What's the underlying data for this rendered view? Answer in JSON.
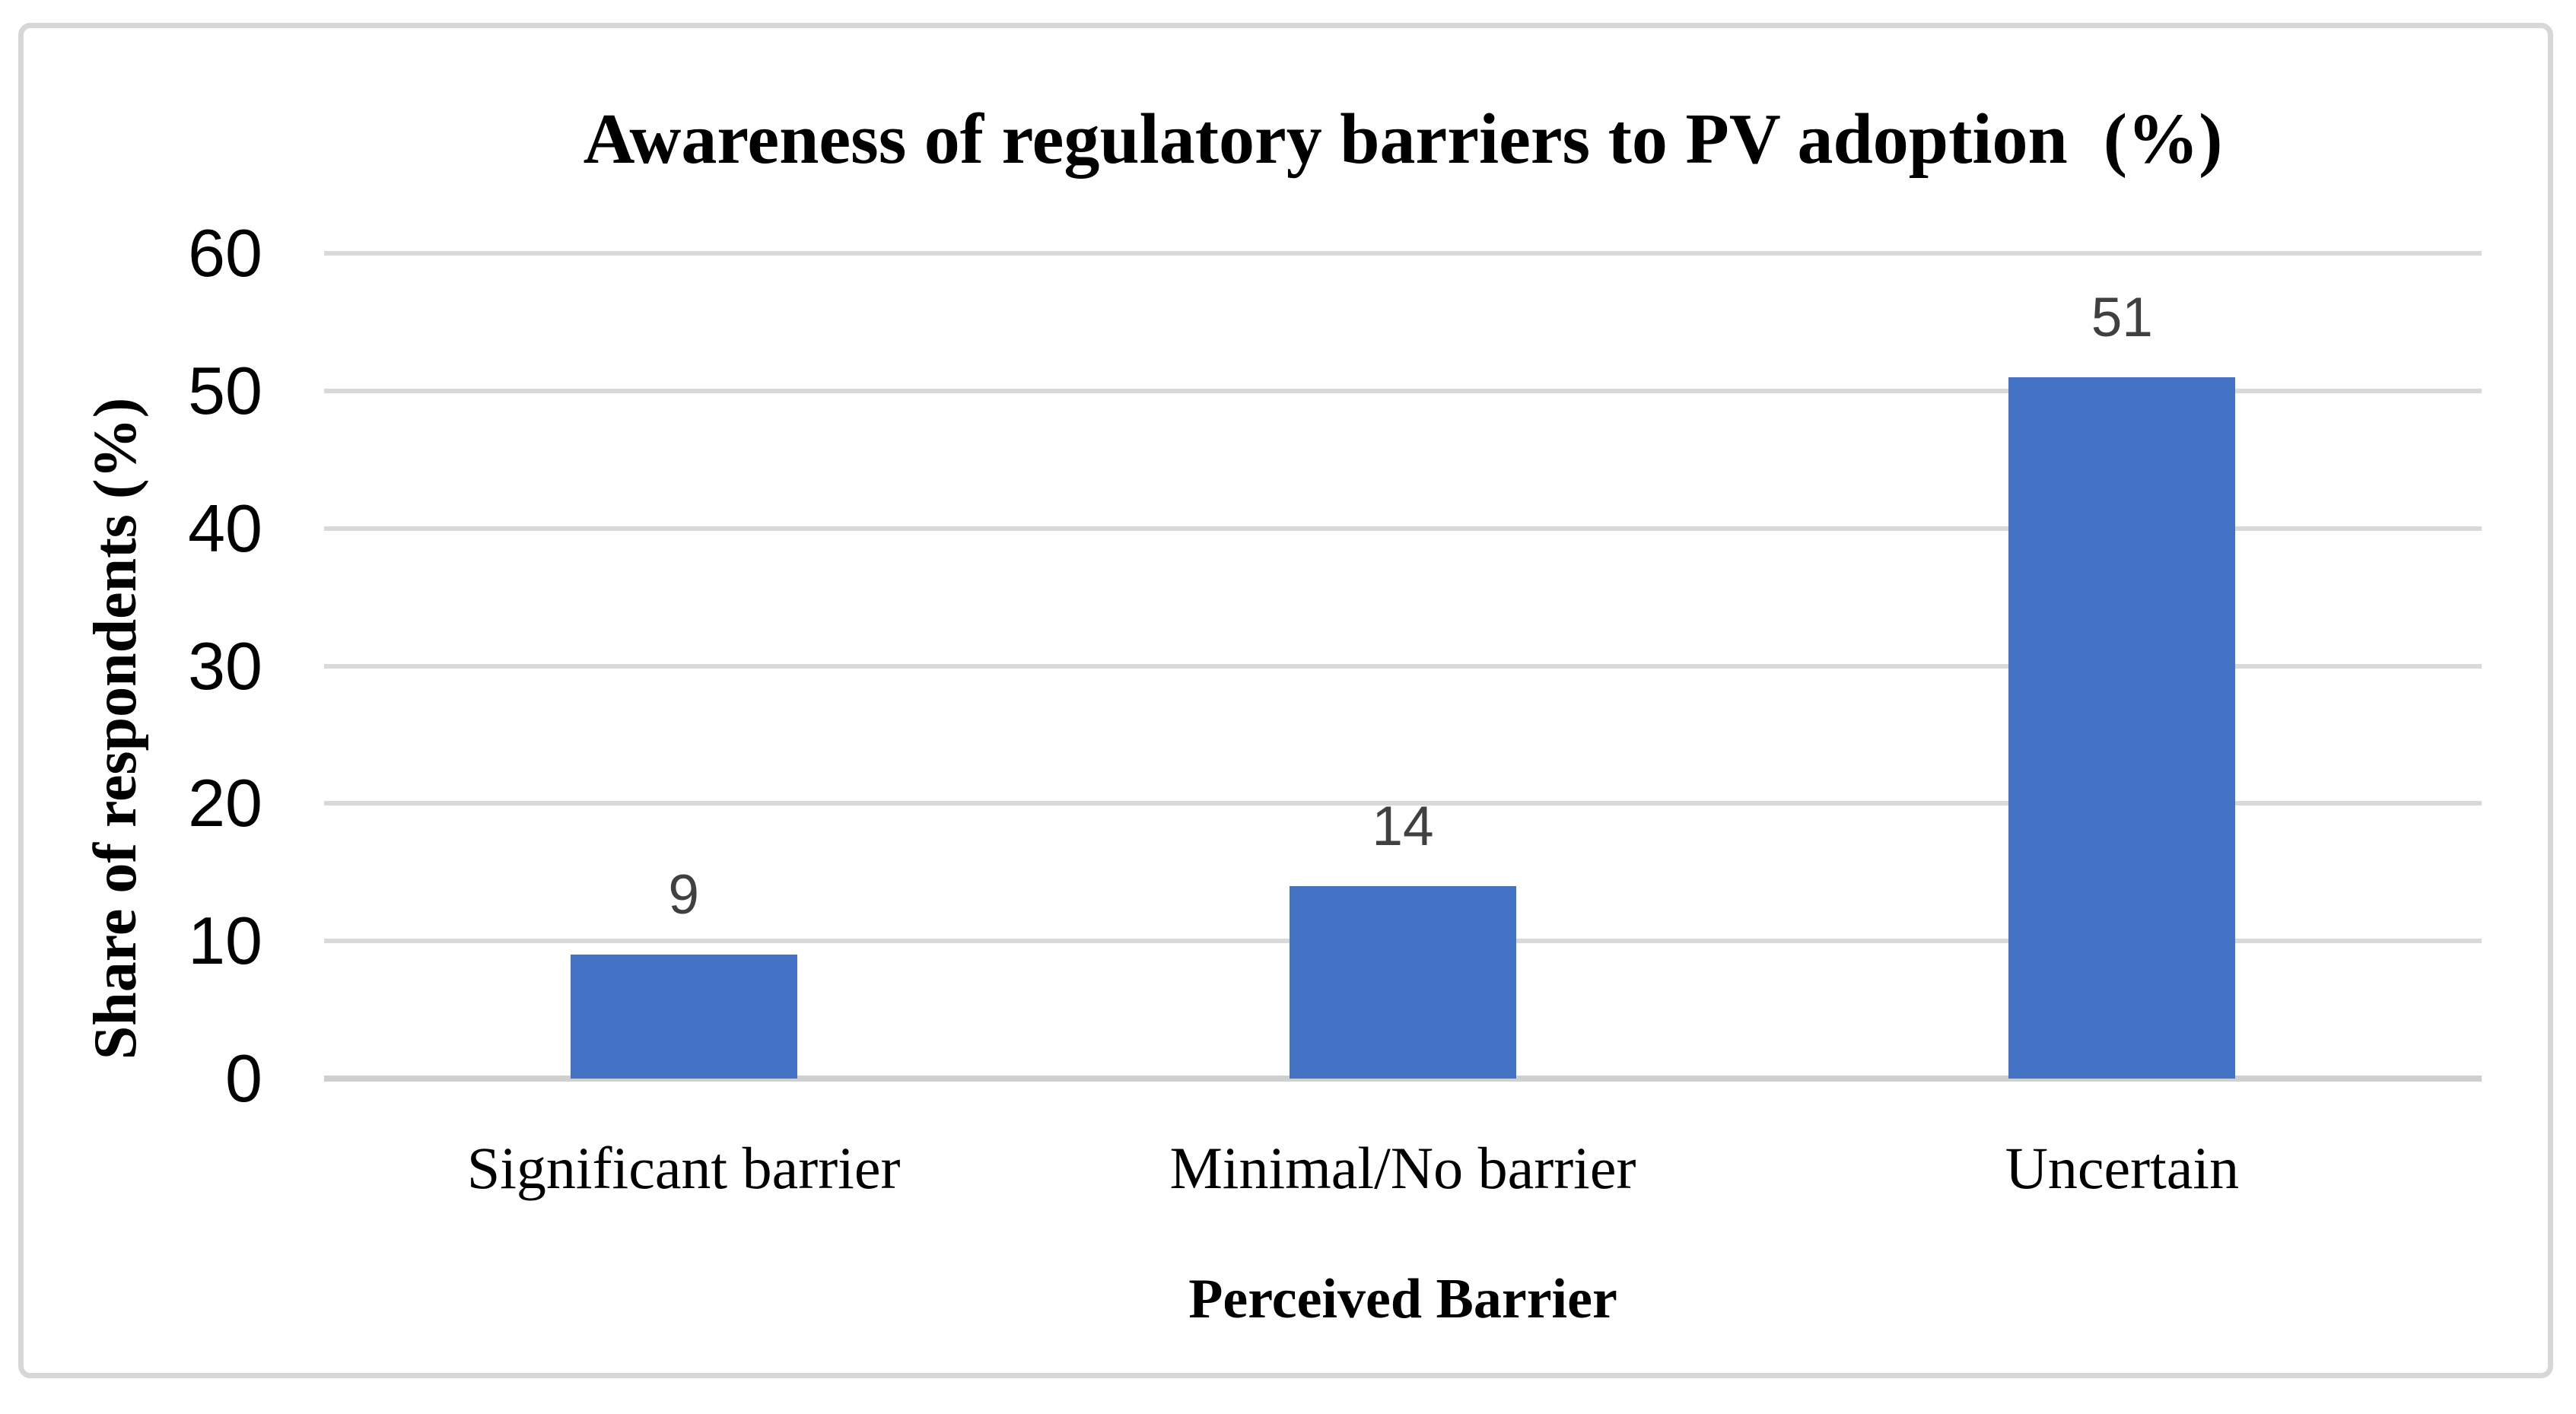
{
  "chart_data": {
    "type": "bar",
    "title": "Awareness of regulatory barriers to PV adoption  (%)",
    "categories": [
      "Significant barrier",
      "Minimal/No barrier",
      "Uncertain"
    ],
    "values": [
      9,
      14,
      51
    ],
    "xlabel": "Perceived Barrier",
    "ylabel": "Share of respondents (%)",
    "ylim": [
      0,
      60
    ],
    "yticks": [
      0,
      10,
      20,
      30,
      40,
      50,
      60
    ],
    "grid": true,
    "legend_position": "none",
    "colors": {
      "bar": "#4472C4",
      "gridline": "#D9D9D9",
      "axis_line": "#CFCFCF",
      "data_label": "#404040",
      "tick_label": "#000000",
      "category_label": "#000000",
      "frame_border": "#D7D7D7",
      "background": "#FFFFFF"
    }
  }
}
